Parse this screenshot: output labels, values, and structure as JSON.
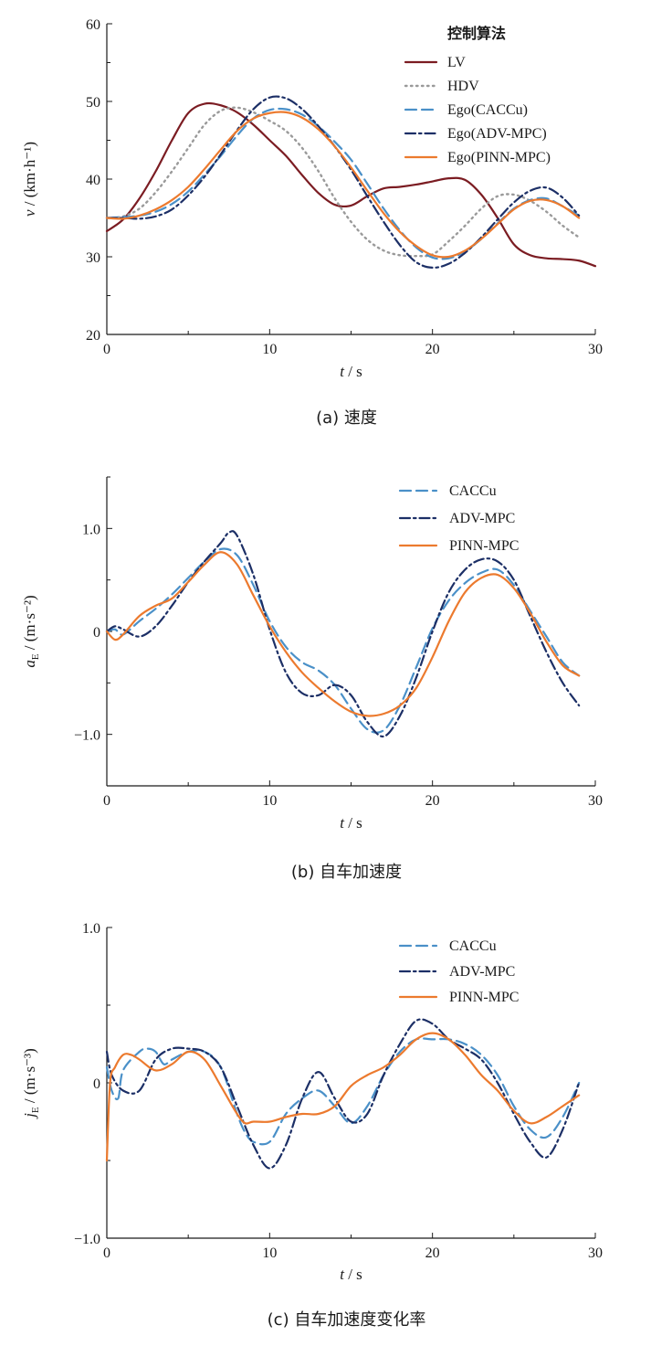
{
  "chart_data": [
    {
      "type": "line",
      "caption": "(a)  速度",
      "xlabel": "t / s",
      "ylabel": "v / (km·h⁻¹)",
      "xlim": [
        0,
        30
      ],
      "ylim": [
        20,
        60
      ],
      "xticks": [
        0,
        10,
        20,
        30
      ],
      "yticks": [
        20,
        30,
        40,
        50,
        60
      ],
      "legend_title": "控制算法",
      "legend_position": "top-right",
      "grid": false,
      "series": [
        {
          "name": "LV",
          "color": "#7b1c22",
          "dash": "solid",
          "x": [
            0,
            1,
            2,
            3,
            4,
            5,
            6,
            7,
            8,
            9,
            10,
            11,
            12,
            13,
            14,
            15,
            16,
            17,
            18,
            19,
            20,
            21,
            22,
            23,
            24,
            25,
            26,
            27,
            28,
            29,
            30
          ],
          "y": [
            33.3,
            34.8,
            37.5,
            41,
            45,
            48.5,
            49.7,
            49.5,
            48.6,
            47,
            45,
            43,
            40.5,
            38.2,
            36.7,
            36.6,
            37.8,
            38.8,
            39,
            39.3,
            39.7,
            40.1,
            39.9,
            38,
            35,
            31.6,
            30.2,
            29.8,
            29.7,
            29.5,
            28.8
          ]
        },
        {
          "name": "HDV",
          "color": "#9a9a9a",
          "dash": "dot",
          "x": [
            0,
            1,
            2,
            3,
            4,
            5,
            6,
            7,
            8,
            9,
            10,
            11,
            12,
            13,
            14,
            15,
            16,
            17,
            18,
            19,
            20,
            21,
            22,
            23,
            24,
            25,
            26,
            27,
            28,
            29
          ],
          "y": [
            35,
            35.2,
            36.2,
            38.3,
            41,
            44,
            47,
            48.8,
            49.2,
            48.6,
            47.5,
            46.2,
            44,
            41,
            37.5,
            34.5,
            32.2,
            30.8,
            30.2,
            30.1,
            30.3,
            32,
            34,
            36.2,
            37.8,
            38,
            37.2,
            35.8,
            34,
            32.5
          ]
        },
        {
          "name": "Ego(CACCu)",
          "color": "#4a90c8",
          "dash": "dash",
          "x": [
            0,
            1,
            2,
            3,
            4,
            5,
            6,
            7,
            8,
            9,
            10,
            11,
            12,
            13,
            14,
            15,
            16,
            17,
            18,
            19,
            20,
            21,
            22,
            23,
            24,
            25,
            26,
            27,
            28,
            29
          ],
          "y": [
            35,
            35.1,
            35.3,
            35.8,
            36.8,
            38.4,
            40.6,
            43,
            45.6,
            47.8,
            48.9,
            49,
            48.3,
            46.8,
            44.8,
            42.5,
            39.4,
            36.2,
            33.4,
            31.2,
            29.9,
            29.8,
            30.7,
            32.3,
            34.3,
            36.2,
            37.3,
            37.5,
            36.5,
            35.3
          ]
        },
        {
          "name": "Ego(ADV-MPC)",
          "color": "#1c2f66",
          "dash": "dashdot",
          "x": [
            0,
            1,
            2,
            3,
            4,
            5,
            6,
            7,
            8,
            9,
            10,
            11,
            12,
            13,
            14,
            15,
            16,
            17,
            18,
            19,
            20,
            21,
            22,
            23,
            24,
            25,
            26,
            27,
            28,
            29
          ],
          "y": [
            35,
            35,
            34.9,
            35.2,
            36.1,
            37.9,
            40.3,
            43.2,
            46.3,
            49,
            50.5,
            50.4,
            49,
            46.8,
            44.2,
            41.2,
            37.8,
            34.5,
            31.5,
            29.3,
            28.6,
            29.1,
            30.5,
            32.5,
            34.8,
            37,
            38.5,
            38.9,
            37.6,
            35.3
          ]
        },
        {
          "name": "Ego(PINN-MPC)",
          "color": "#ec7a2e",
          "dash": "solid",
          "x": [
            0,
            1,
            2,
            3,
            4,
            5,
            6,
            7,
            8,
            9,
            10,
            11,
            12,
            13,
            14,
            15,
            16,
            17,
            18,
            19,
            20,
            21,
            22,
            23,
            24,
            25,
            26,
            27,
            28,
            29
          ],
          "y": [
            35,
            34.9,
            35.3,
            36.1,
            37.3,
            39,
            41.3,
            43.8,
            46.2,
            47.8,
            48.5,
            48.6,
            47.9,
            46.4,
            44.2,
            41.5,
            38.5,
            35.6,
            33.2,
            31.4,
            30.2,
            30,
            30.8,
            32.3,
            34.2,
            36.1,
            37.2,
            37.3,
            36.5,
            35
          ]
        }
      ]
    },
    {
      "type": "line",
      "caption": "(b)  自车加速度",
      "xlabel": "t / s",
      "ylabel": "aE / (m·s⁻²)",
      "xlim": [
        0,
        30
      ],
      "ylim": [
        -1.5,
        1.5
      ],
      "xticks": [
        0,
        10,
        20,
        30
      ],
      "yticks": [
        -1.0,
        0,
        1.0
      ],
      "legend_position": "top-right",
      "grid": false,
      "series": [
        {
          "name": "CACCu",
          "color": "#4a90c8",
          "dash": "dash",
          "x": [
            0,
            0.5,
            1,
            2,
            3,
            4,
            5,
            6,
            7,
            8,
            9,
            10,
            11,
            12,
            13,
            14,
            15,
            16,
            17,
            18,
            19,
            20,
            21,
            22,
            23,
            24,
            25,
            26,
            27,
            28,
            29
          ],
          "y": [
            0,
            0.02,
            -0.03,
            0.1,
            0.22,
            0.36,
            0.52,
            0.68,
            0.8,
            0.74,
            0.45,
            0.1,
            -0.15,
            -0.3,
            -0.38,
            -0.52,
            -0.75,
            -0.95,
            -0.96,
            -0.72,
            -0.35,
            0.03,
            0.3,
            0.47,
            0.57,
            0.6,
            0.45,
            0.2,
            -0.05,
            -0.3,
            -0.43
          ]
        },
        {
          "name": "ADV-MPC",
          "color": "#1c2f66",
          "dash": "dashdot",
          "x": [
            0,
            0.5,
            1,
            2,
            3,
            4,
            5,
            6,
            7,
            7.5,
            8,
            9,
            10,
            11,
            12,
            13,
            14,
            15,
            16,
            17,
            18,
            19,
            20,
            21,
            22,
            23,
            24,
            25,
            26,
            27,
            28,
            29
          ],
          "y": [
            0,
            0.05,
            0.02,
            -0.05,
            0.05,
            0.25,
            0.48,
            0.68,
            0.86,
            0.96,
            0.93,
            0.55,
            0.02,
            -0.4,
            -0.6,
            -0.62,
            -0.52,
            -0.62,
            -0.88,
            -1.02,
            -0.82,
            -0.45,
            0,
            0.38,
            0.6,
            0.7,
            0.68,
            0.5,
            0.15,
            -0.2,
            -0.5,
            -0.72
          ]
        },
        {
          "name": "PINN-MPC",
          "color": "#ec7a2e",
          "dash": "solid",
          "x": [
            0,
            0.5,
            1,
            2,
            3,
            4,
            5,
            6,
            7,
            8,
            9,
            10,
            11,
            12,
            13,
            14,
            15,
            16,
            17,
            18,
            19,
            20,
            21,
            22,
            23,
            24,
            25,
            26,
            27,
            28,
            29
          ],
          "y": [
            0,
            -0.08,
            -0.03,
            0.15,
            0.25,
            0.32,
            0.48,
            0.65,
            0.77,
            0.65,
            0.35,
            0.05,
            -0.2,
            -0.4,
            -0.55,
            -0.68,
            -0.78,
            -0.82,
            -0.8,
            -0.72,
            -0.55,
            -0.25,
            0.1,
            0.38,
            0.52,
            0.55,
            0.42,
            0.18,
            -0.1,
            -0.33,
            -0.43
          ]
        }
      ]
    },
    {
      "type": "line",
      "caption": "(c)  自车加速度变化率",
      "xlabel": "t / s",
      "ylabel": "jE / (m·s⁻³)",
      "xlim": [
        0,
        30
      ],
      "ylim": [
        -1.0,
        1.0
      ],
      "xticks": [
        0,
        10,
        20,
        30
      ],
      "yticks": [
        -1.0,
        0,
        1.0
      ],
      "legend_position": "top-right",
      "grid": false,
      "series": [
        {
          "name": "CACCu",
          "color": "#4a90c8",
          "dash": "dash",
          "x": [
            0,
            0.3,
            0.7,
            1,
            2,
            2.5,
            3,
            3.5,
            4,
            5,
            6,
            7,
            8,
            8.5,
            9,
            10,
            11,
            12,
            13,
            14,
            15,
            16,
            17,
            18,
            19,
            20,
            21,
            22,
            23,
            24,
            25,
            26,
            27,
            28,
            29
          ],
          "y": [
            0.1,
            -0.05,
            -0.1,
            0.08,
            0.2,
            0.22,
            0.2,
            0.12,
            0.15,
            0.2,
            0.2,
            0.1,
            -0.2,
            -0.32,
            -0.38,
            -0.38,
            -0.2,
            -0.1,
            -0.05,
            -0.15,
            -0.26,
            -0.15,
            0.05,
            0.2,
            0.28,
            0.28,
            0.28,
            0.25,
            0.18,
            0.05,
            -0.15,
            -0.3,
            -0.35,
            -0.22,
            0
          ]
        },
        {
          "name": "ADV-MPC",
          "color": "#1c2f66",
          "dash": "dashdot",
          "x": [
            0,
            0.3,
            1,
            2,
            3,
            4,
            5,
            6,
            7,
            8,
            9,
            10,
            11,
            12,
            13,
            14,
            15,
            16,
            17,
            18,
            19,
            20,
            21,
            22,
            23,
            24,
            25,
            26,
            27,
            28,
            29
          ],
          "y": [
            0.2,
            0.05,
            -0.05,
            -0.05,
            0.15,
            0.22,
            0.22,
            0.2,
            0.1,
            -0.15,
            -0.4,
            -0.55,
            -0.4,
            -0.1,
            0.07,
            -0.1,
            -0.25,
            -0.2,
            0.05,
            0.25,
            0.4,
            0.38,
            0.28,
            0.22,
            0.15,
            0,
            -0.2,
            -0.38,
            -0.48,
            -0.3,
            0
          ]
        },
        {
          "name": "PINN-MPC",
          "color": "#ec7a2e",
          "dash": "solid",
          "x": [
            0,
            0.2,
            0.5,
            1,
            1.5,
            2,
            3,
            4,
            5,
            6,
            7,
            8,
            8.5,
            9,
            10,
            11,
            12,
            13,
            14,
            15,
            16,
            17,
            18,
            19,
            20,
            21,
            22,
            23,
            24,
            25,
            26,
            27,
            28,
            29
          ],
          "y": [
            -0.5,
            0,
            0.1,
            0.18,
            0.18,
            0.15,
            0.08,
            0.12,
            0.2,
            0.15,
            -0.02,
            -0.2,
            -0.26,
            -0.25,
            -0.25,
            -0.22,
            -0.2,
            -0.2,
            -0.15,
            -0.02,
            0.05,
            0.1,
            0.18,
            0.28,
            0.32,
            0.28,
            0.18,
            0.05,
            -0.05,
            -0.18,
            -0.26,
            -0.22,
            -0.15,
            -0.08
          ]
        }
      ]
    }
  ]
}
